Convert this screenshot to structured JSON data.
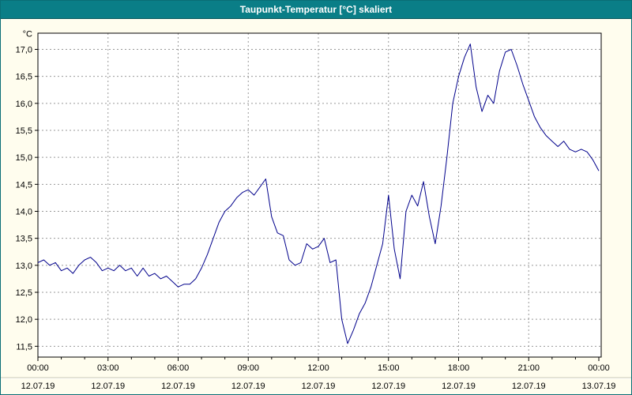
{
  "title": "Taupunkt-Temperatur [°C] skaliert",
  "colors": {
    "titlebar_bg": "#0a7e87",
    "titlebar_text": "#ffffff",
    "window_bg": "#fffdee",
    "plot_bg": "#ffffff",
    "line": "#00008b",
    "grid": "#999999",
    "axis": "#000000",
    "label_text": "#000000",
    "separator": "#c8c8b4"
  },
  "chart_data": {
    "type": "line",
    "title": "Taupunkt-Temperatur [°C] skaliert",
    "xlabel": "",
    "ylabel": "°C",
    "ylim": [
      11.3,
      17.3
    ],
    "grid": "dashed, horizontal every 0.5 °C, vertical every 3 h",
    "legend_position": "none",
    "yticks": [
      {
        "v": 17.0,
        "label": "17,0"
      },
      {
        "v": 16.5,
        "label": "16,5"
      },
      {
        "v": 16.0,
        "label": "16,0"
      },
      {
        "v": 15.5,
        "label": "15,5"
      },
      {
        "v": 15.0,
        "label": "15,0"
      },
      {
        "v": 14.5,
        "label": "14,5"
      },
      {
        "v": 14.0,
        "label": "14,0"
      },
      {
        "v": 13.5,
        "label": "13,5"
      },
      {
        "v": 13.0,
        "label": "13,0"
      },
      {
        "v": 12.5,
        "label": "12,5"
      },
      {
        "v": 12.0,
        "label": "12,0"
      },
      {
        "v": 11.5,
        "label": "11,5"
      }
    ],
    "xticks": [
      {
        "hour": 0,
        "time": "00:00",
        "date": "12.07.19"
      },
      {
        "hour": 3,
        "time": "03:00",
        "date": "12.07.19"
      },
      {
        "hour": 6,
        "time": "06:00",
        "date": "12.07.19"
      },
      {
        "hour": 9,
        "time": "09:00",
        "date": "12.07.19"
      },
      {
        "hour": 12,
        "time": "12:00",
        "date": "12.07.19"
      },
      {
        "hour": 15,
        "time": "15:00",
        "date": "12.07.19"
      },
      {
        "hour": 18,
        "time": "18:00",
        "date": "12.07.19"
      },
      {
        "hour": 21,
        "time": "21:00",
        "date": "12.07.19"
      },
      {
        "hour": 24,
        "time": "00:00",
        "date": "13.07.19"
      }
    ],
    "series": [
      {
        "name": "Taupunkt-Temperatur",
        "x_hours": [
          0,
          0.25,
          0.5,
          0.75,
          1,
          1.25,
          1.5,
          1.75,
          2,
          2.25,
          2.5,
          2.75,
          3,
          3.25,
          3.5,
          3.75,
          4,
          4.25,
          4.5,
          4.75,
          5,
          5.25,
          5.5,
          5.75,
          6,
          6.25,
          6.5,
          6.75,
          7,
          7.25,
          7.5,
          7.75,
          8,
          8.25,
          8.5,
          8.75,
          9,
          9.25,
          9.5,
          9.75,
          10,
          10.25,
          10.5,
          10.75,
          11,
          11.25,
          11.5,
          11.75,
          12,
          12.25,
          12.5,
          12.75,
          13,
          13.25,
          13.5,
          13.75,
          14,
          14.25,
          14.5,
          14.75,
          15,
          15.25,
          15.5,
          15.75,
          16,
          16.25,
          16.5,
          16.75,
          17,
          17.25,
          17.5,
          17.75,
          18,
          18.25,
          18.5,
          18.75,
          19,
          19.25,
          19.5,
          19.75,
          20,
          20.25,
          20.5,
          20.75,
          21,
          21.25,
          21.5,
          21.75,
          22,
          22.25,
          22.5,
          22.75,
          23,
          23.25,
          23.5,
          23.75,
          24
        ],
        "values": [
          13.05,
          13.1,
          13.0,
          13.05,
          12.9,
          12.95,
          12.85,
          13.0,
          13.1,
          13.15,
          13.05,
          12.9,
          12.95,
          12.9,
          13.0,
          12.9,
          12.95,
          12.8,
          12.95,
          12.8,
          12.85,
          12.75,
          12.8,
          12.7,
          12.6,
          12.65,
          12.65,
          12.75,
          12.95,
          13.2,
          13.5,
          13.8,
          14.0,
          14.1,
          14.25,
          14.35,
          14.4,
          14.3,
          14.45,
          14.6,
          13.9,
          13.6,
          13.55,
          13.1,
          13.0,
          13.05,
          13.4,
          13.3,
          13.35,
          13.5,
          13.05,
          13.1,
          12.0,
          11.55,
          11.8,
          12.1,
          12.3,
          12.6,
          13.0,
          13.4,
          14.3,
          13.3,
          12.75,
          14.0,
          14.3,
          14.1,
          14.55,
          13.9,
          13.4,
          14.1,
          15.0,
          16.0,
          16.5,
          16.85,
          17.1,
          16.3,
          15.85,
          16.15,
          16.0,
          16.6,
          16.95,
          17.0,
          16.7,
          16.35,
          16.05,
          15.75,
          15.55,
          15.4,
          15.3,
          15.2,
          15.3,
          15.15,
          15.1,
          15.15,
          15.1,
          14.95,
          14.75
        ]
      }
    ]
  }
}
